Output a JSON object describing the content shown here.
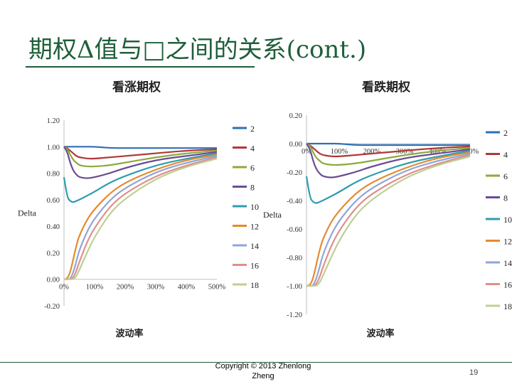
{
  "slide": {
    "title": "期权Δ值与□之间的关系(cont.)",
    "copyright_line1": "Copyright © 2013 Zhenlong",
    "copyright_line2": "Zheng",
    "page_number": "19"
  },
  "colors": {
    "title": "#1f5f3a",
    "series": [
      "#2e6fb5",
      "#b03a3a",
      "#8caa3e",
      "#6b4c94",
      "#2e9db0",
      "#e58a2f",
      "#8fa6d6",
      "#e08e8a",
      "#bcd092"
    ]
  },
  "chart_data": [
    {
      "type": "line",
      "title": "看涨期权",
      "xlabel": "波动率",
      "ylabel": "Delta",
      "x_ticks": [
        "0%",
        "100%",
        "200%",
        "300%",
        "400%",
        "500%"
      ],
      "y_ticks": [
        "1.20",
        "1.00",
        "0.80",
        "0.60",
        "0.40",
        "0.20",
        "0.00",
        "-0.20"
      ],
      "xlim": [
        0,
        500
      ],
      "ylim": [
        -0.2,
        1.2
      ],
      "grid": false,
      "legend_position": "right",
      "x": [
        0,
        10,
        20,
        30,
        40,
        50,
        75,
        100,
        150,
        200,
        300,
        400,
        500
      ],
      "series": [
        {
          "name": "2",
          "values": [
            1.0,
            1.0,
            1.0,
            1.0,
            1.0,
            1.0,
            1.0,
            1.0,
            0.99,
            0.99,
            0.99,
            0.99,
            0.99
          ]
        },
        {
          "name": "4",
          "values": [
            1.0,
            0.99,
            0.97,
            0.95,
            0.93,
            0.92,
            0.91,
            0.91,
            0.92,
            0.93,
            0.95,
            0.97,
            0.98
          ]
        },
        {
          "name": "6",
          "values": [
            1.0,
            0.99,
            0.94,
            0.9,
            0.88,
            0.86,
            0.85,
            0.85,
            0.86,
            0.88,
            0.92,
            0.95,
            0.97
          ]
        },
        {
          "name": "8",
          "values": [
            1.0,
            0.97,
            0.88,
            0.82,
            0.79,
            0.77,
            0.76,
            0.77,
            0.8,
            0.84,
            0.9,
            0.93,
            0.96
          ]
        },
        {
          "name": "10",
          "values": [
            0.77,
            0.62,
            0.59,
            0.58,
            0.59,
            0.6,
            0.63,
            0.66,
            0.73,
            0.78,
            0.86,
            0.91,
            0.95
          ]
        },
        {
          "name": "12",
          "values": [
            0.0,
            0.0,
            0.05,
            0.15,
            0.25,
            0.33,
            0.45,
            0.53,
            0.65,
            0.73,
            0.83,
            0.9,
            0.94
          ]
        },
        {
          "name": "14",
          "values": [
            0.0,
            0.0,
            0.0,
            0.05,
            0.13,
            0.22,
            0.36,
            0.46,
            0.6,
            0.69,
            0.81,
            0.88,
            0.93
          ]
        },
        {
          "name": "16",
          "values": [
            0.0,
            0.0,
            0.0,
            0.01,
            0.06,
            0.13,
            0.28,
            0.39,
            0.55,
            0.65,
            0.78,
            0.86,
            0.92
          ]
        },
        {
          "name": "18",
          "values": [
            0.0,
            0.0,
            0.0,
            0.0,
            0.02,
            0.07,
            0.2,
            0.32,
            0.5,
            0.61,
            0.76,
            0.85,
            0.91
          ]
        }
      ]
    },
    {
      "type": "line",
      "title": "看跌期权",
      "xlabel": "波动率",
      "ylabel": "Delta",
      "x_ticks": [
        "0%",
        "100%",
        "200%",
        "300%",
        "400%",
        "500%"
      ],
      "y_ticks": [
        "0.20",
        "0.00",
        "-0.20",
        "-0.40",
        "-0.60",
        "-0.80",
        "-1.00",
        "-1.20"
      ],
      "xlim": [
        0,
        500
      ],
      "ylim": [
        -1.2,
        0.2
      ],
      "grid": false,
      "legend_position": "right",
      "x": [
        0,
        10,
        20,
        30,
        40,
        50,
        75,
        100,
        150,
        200,
        300,
        400,
        500
      ],
      "series": [
        {
          "name": "2",
          "values": [
            0.0,
            0.0,
            0.0,
            0.0,
            0.0,
            0.0,
            0.0,
            0.0,
            -0.01,
            -0.01,
            -0.01,
            -0.01,
            -0.01
          ]
        },
        {
          "name": "4",
          "values": [
            0.0,
            -0.01,
            -0.03,
            -0.05,
            -0.07,
            -0.08,
            -0.09,
            -0.09,
            -0.08,
            -0.07,
            -0.05,
            -0.03,
            -0.02
          ]
        },
        {
          "name": "6",
          "values": [
            0.0,
            -0.01,
            -0.06,
            -0.1,
            -0.12,
            -0.14,
            -0.15,
            -0.15,
            -0.14,
            -0.12,
            -0.08,
            -0.05,
            -0.03
          ]
        },
        {
          "name": "8",
          "values": [
            0.0,
            -0.03,
            -0.12,
            -0.18,
            -0.21,
            -0.23,
            -0.24,
            -0.23,
            -0.2,
            -0.16,
            -0.1,
            -0.07,
            -0.04
          ]
        },
        {
          "name": "10",
          "values": [
            -0.23,
            -0.38,
            -0.41,
            -0.42,
            -0.41,
            -0.4,
            -0.37,
            -0.34,
            -0.27,
            -0.22,
            -0.14,
            -0.09,
            -0.05
          ]
        },
        {
          "name": "12",
          "values": [
            -1.0,
            -1.0,
            -0.95,
            -0.85,
            -0.75,
            -0.67,
            -0.55,
            -0.47,
            -0.35,
            -0.27,
            -0.17,
            -0.1,
            -0.06
          ]
        },
        {
          "name": "14",
          "values": [
            -1.0,
            -1.0,
            -1.0,
            -0.95,
            -0.87,
            -0.78,
            -0.64,
            -0.54,
            -0.4,
            -0.31,
            -0.19,
            -0.12,
            -0.07
          ]
        },
        {
          "name": "16",
          "values": [
            -1.0,
            -1.0,
            -1.0,
            -0.99,
            -0.94,
            -0.87,
            -0.72,
            -0.61,
            -0.45,
            -0.35,
            -0.22,
            -0.14,
            -0.08
          ]
        },
        {
          "name": "18",
          "values": [
            -1.0,
            -1.0,
            -1.0,
            -1.0,
            -0.98,
            -0.93,
            -0.8,
            -0.68,
            -0.5,
            -0.39,
            -0.24,
            -0.15,
            -0.09
          ]
        }
      ]
    }
  ]
}
